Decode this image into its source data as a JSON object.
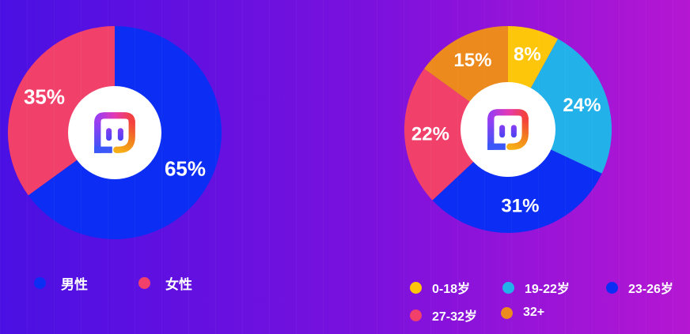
{
  "background": {
    "gradient_start": "#4a10e3",
    "gradient_end": "#b517d2"
  },
  "logo": {
    "name": "momo-chat-bubble",
    "ring_colors": [
      "#3b55f6",
      "#9a3cf2",
      "#e33ab4",
      "#f4403e",
      "#f2801f",
      "#f7ad16"
    ],
    "eye_colors": [
      "#8a3cf2",
      "#4743f3"
    ],
    "background": "#ffffff"
  },
  "chart_data": [
    {
      "type": "pie",
      "donut": true,
      "start_angle": 0,
      "title": "",
      "categories": [
        "男性",
        "女性"
      ],
      "values": [
        65,
        35
      ],
      "labels": [
        "65%",
        "35%"
      ],
      "colors": [
        "#0c2df4",
        "#f1416b"
      ],
      "label_color": "#ffffff",
      "legend_position": "bottom"
    },
    {
      "type": "pie",
      "donut": true,
      "start_angle": 0,
      "title": "",
      "categories": [
        "0-18岁",
        "19-22岁",
        "23-26岁",
        "27-32岁",
        "32+"
      ],
      "values": [
        8,
        24,
        31,
        22,
        15
      ],
      "labels": [
        "8%",
        "24%",
        "31%",
        "22%",
        "15%"
      ],
      "colors": [
        "#fdc60b",
        "#22b2e9",
        "#0c2df4",
        "#f1416b",
        "#ec8a1e"
      ],
      "label_color": "#ffffff",
      "legend_position": "bottom"
    }
  ]
}
